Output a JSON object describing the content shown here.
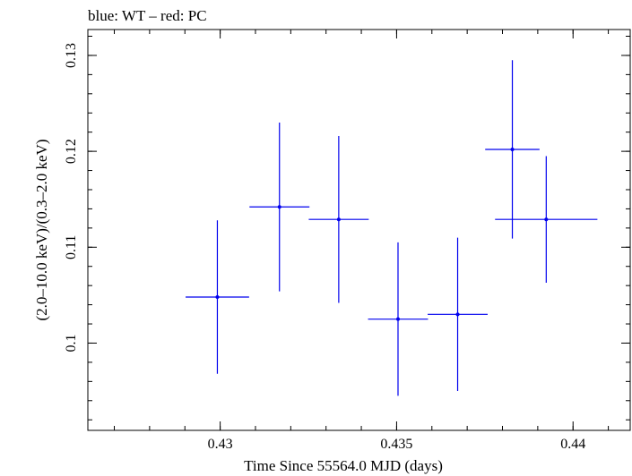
{
  "header_text": "blue: WT – red: PC",
  "chart_data": {
    "type": "scatter",
    "title": "blue: WT – red: PC",
    "xlabel": "Time Since 55564.0 MJD (days)",
    "ylabel": "(2.0–10.0 keV)/(0.3–2.0 keV)",
    "xlim": [
      0.42625,
      0.44162
    ],
    "ylim": [
      0.0909,
      0.1327
    ],
    "xticks": [
      {
        "value": 0.43,
        "label": "0.43"
      },
      {
        "value": 0.435,
        "label": "0.435"
      },
      {
        "value": 0.44,
        "label": "0.44"
      }
    ],
    "yticks": [
      {
        "value": 0.1,
        "label": "0.1"
      },
      {
        "value": 0.11,
        "label": "0.11"
      },
      {
        "value": 0.12,
        "label": "0.12"
      },
      {
        "value": 0.13,
        "label": "0.13"
      }
    ],
    "x_minor_step": 0.001,
    "y_minor_step": 0.002,
    "grid": false,
    "series": [
      {
        "name": "WT",
        "color": "#0000ee",
        "points": [
          {
            "x": 0.43828,
            "xerr": 0.00077,
            "y": 0.1202,
            "yerr": 0.0093
          },
          {
            "x": 0.42992,
            "xerr": 0.0009,
            "y": 0.1048,
            "yerr": 0.008
          },
          {
            "x": 0.43168,
            "xerr": 0.00085,
            "y": 0.1142,
            "yerr": 0.0088
          },
          {
            "x": 0.43336,
            "xerr": 0.00085,
            "y": 0.1129,
            "yerr": 0.0087
          },
          {
            "x": 0.43504,
            "xerr": 0.00085,
            "y": 0.1025,
            "yerr": 0.008
          },
          {
            "x": 0.43673,
            "xerr": 0.00085,
            "y": 0.103,
            "yerr": 0.008
          },
          {
            "x": 0.43924,
            "xerr": 0.00145,
            "y": 0.1129,
            "yerr": 0.0066
          }
        ]
      }
    ]
  }
}
